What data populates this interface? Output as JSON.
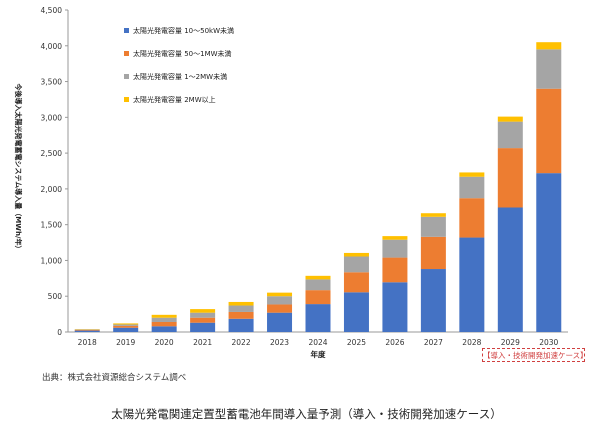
{
  "chart_data": {
    "type": "bar",
    "stacked": true,
    "categories": [
      "2018",
      "2019",
      "2020",
      "2021",
      "2022",
      "2023",
      "2024",
      "2025",
      "2026",
      "2027",
      "2028",
      "2029",
      "2030"
    ],
    "series": [
      {
        "name": "太陽光発電容量 10～50kW未満",
        "color": "#4472c4",
        "values": [
          20,
          60,
          80,
          130,
          185,
          270,
          390,
          555,
          695,
          880,
          1320,
          1740,
          2220
        ]
      },
      {
        "name": "太陽光発電容量 50～1MW未満",
        "color": "#ed7d31",
        "values": [
          10,
          25,
          60,
          70,
          95,
          115,
          195,
          280,
          345,
          450,
          550,
          830,
          1180
        ]
      },
      {
        "name": "太陽光発電容量 1～2MW未満",
        "color": "#a5a5a5",
        "values": [
          5,
          20,
          60,
          70,
          90,
          115,
          150,
          220,
          250,
          280,
          300,
          370,
          550
        ]
      },
      {
        "name": "太陽光発電容量 2MW以上",
        "color": "#ffc000",
        "values": [
          5,
          15,
          40,
          50,
          50,
          50,
          50,
          50,
          50,
          50,
          60,
          70,
          100
        ]
      }
    ],
    "ylim": [
      0,
      4500
    ],
    "yticks": [
      "0",
      "500",
      "1,000",
      "1,500",
      "2,000",
      "2,500",
      "3,000",
      "3,500",
      "4,000",
      "4,500"
    ],
    "xlabel": "年度",
    "ylabel": "今後導入太陽光発電蓄電システム導入量（MWh/年）",
    "legend_position": "top-left",
    "grid": false
  },
  "badge": "【導入・技術開発加速ケース】",
  "source": "出典：株式会社資源総合システム調べ",
  "caption": "太陽光発電関連定置型蓄電池年間導入量予測（導入・技術開発加速ケース）"
}
